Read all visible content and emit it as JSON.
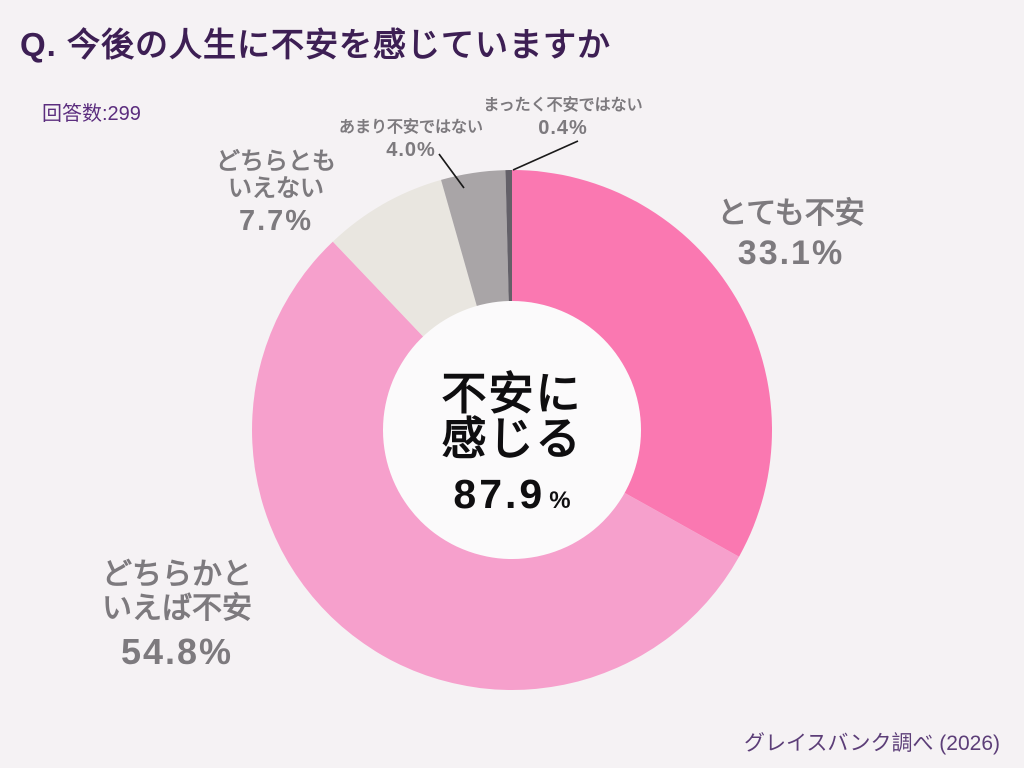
{
  "header": {
    "title": "Q. 今後の人生に不安を感じていますか",
    "respondents": "回答数:299"
  },
  "chart_data": {
    "type": "pie",
    "subtype": "donut",
    "title": "今後の人生に不安を感じていますか",
    "respondents": 299,
    "start_angle": "12-o'clock, clockwise",
    "segments": [
      {
        "label": "とても不安",
        "lines": [
          "とても不安"
        ],
        "value": 33.1,
        "pct_text": "33.1%",
        "color": "#FA78B1"
      },
      {
        "label": "どちらかといえば不安",
        "lines": [
          "どちらかと",
          "いえば不安"
        ],
        "value": 54.8,
        "pct_text": "54.8%",
        "color": "#F6A0CC"
      },
      {
        "label": "どちらともいえない",
        "lines": [
          "どちらとも",
          "いえない"
        ],
        "value": 7.7,
        "pct_text": "7.7%",
        "color": "#E9E6E0"
      },
      {
        "label": "あまり不安ではない",
        "lines": [
          "あまり不安ではない"
        ],
        "value": 4.0,
        "pct_text": "4.0%",
        "color": "#A9A5A7"
      },
      {
        "label": "まったく不安ではない",
        "lines": [
          "まったく不安ではない"
        ],
        "value": 0.4,
        "pct_text": "0.4%",
        "color": "#636068"
      }
    ],
    "center_label": {
      "line1": "不安に",
      "line2": "感じる",
      "value": "87.9",
      "unit": "%"
    },
    "legend": "none",
    "hole_color": "#FBFAFB"
  },
  "footer": {
    "credit": "グレイスバンク調べ (2026)"
  },
  "colors": {
    "background": "#F5F2F4",
    "title_text": "#3D1F54",
    "respondents_text": "#5B2D7E",
    "segment_label_text": "#7D7A7E",
    "center_text": "#0F0E10",
    "credit_text": "#5C3E78",
    "leader_line": "#1A1A1A"
  }
}
